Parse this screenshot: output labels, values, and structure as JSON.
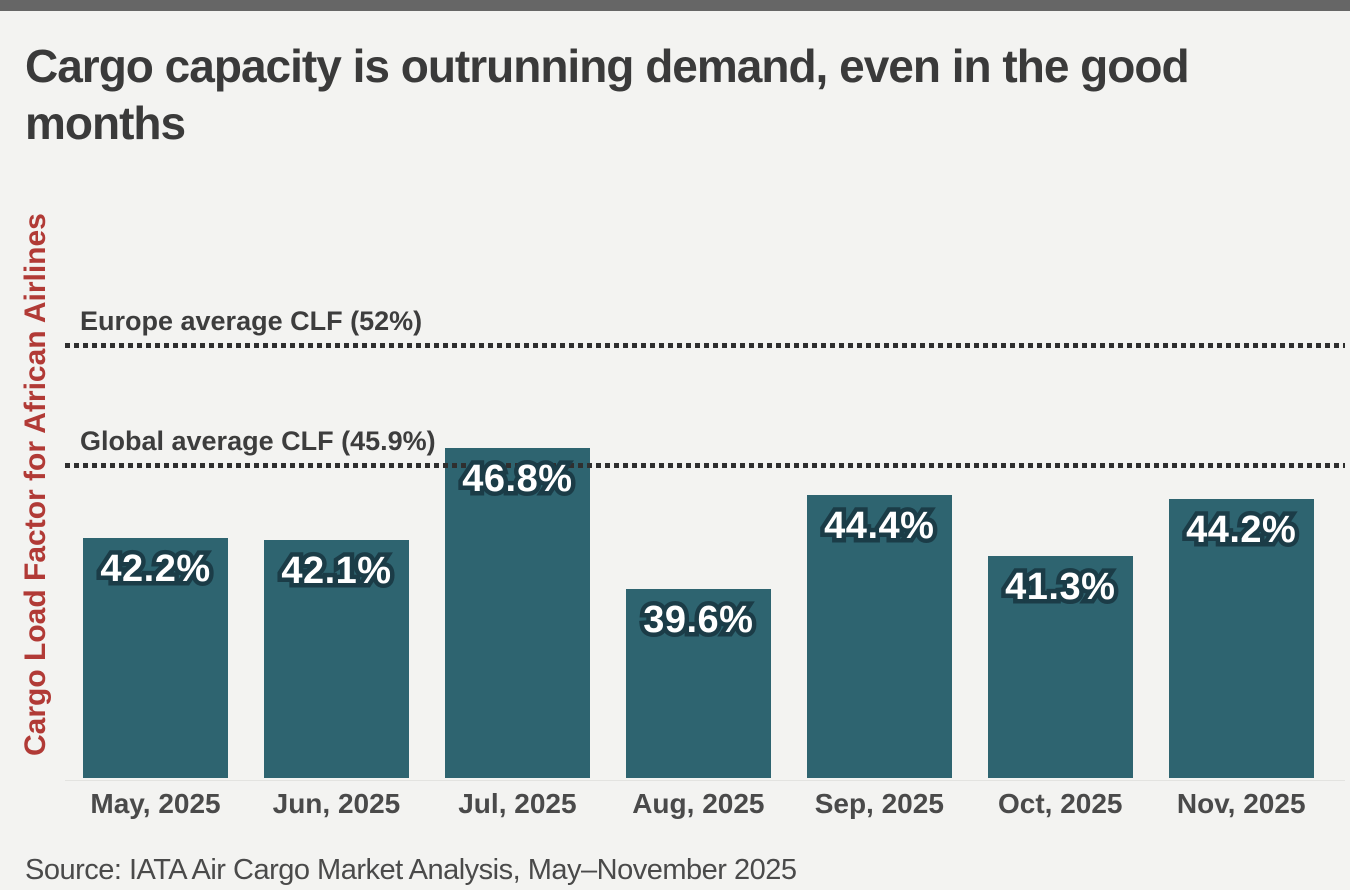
{
  "page": {
    "title_lines": [
      "Cargo capacity is outrunning demand, even in the good",
      "months"
    ],
    "source": "Source: IATA Air Cargo Market Analysis, May–November 2025"
  },
  "chart_data": {
    "type": "bar",
    "title": "Cargo capacity is outrunning demand, even in the good months",
    "ylabel": "Cargo Load Factor for African Airlines",
    "xlabel": "",
    "categories": [
      "May, 2025",
      "Jun, 2025",
      "Jul, 2025",
      "Aug, 2025",
      "Sep, 2025",
      "Oct, 2025",
      "Nov, 2025"
    ],
    "values": [
      42.2,
      42.1,
      46.8,
      39.6,
      44.4,
      41.3,
      44.2
    ],
    "bar_value_labels": [
      "42.2%",
      "42.1%",
      "46.8%",
      "39.6%",
      "44.4%",
      "41.3%",
      "44.2%"
    ],
    "reference_lines": [
      {
        "label": "Europe average CLF (52%)",
        "value": 52
      },
      {
        "label": "Global average CLF (45.9%)",
        "value": 45.9
      }
    ],
    "ylim": [
      30,
      55
    ],
    "grid": false,
    "legend": "none",
    "source": "IATA Air Cargo Market Analysis, May–November 2025"
  },
  "colors": {
    "background": "#f3f3f1",
    "top_bar": "#666666",
    "title_text": "#3a3a3a",
    "y_axis_label_red": "#b13a36",
    "bar_fill": "#2e6470",
    "bar_label_fill": "#ffffff",
    "bar_label_outline": "#1b3c47",
    "reference_line_dots": "#2f2f2f",
    "reference_label_text": "#3d3d3d",
    "month_label_text": "#4a4a4a",
    "source_text": "#4a4a4a"
  }
}
